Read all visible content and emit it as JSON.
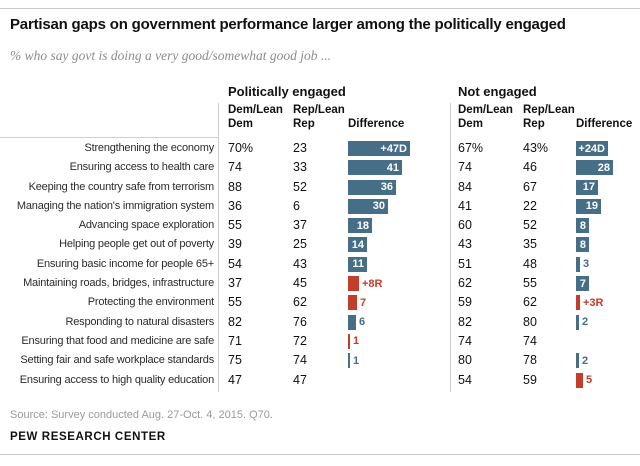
{
  "page": {
    "title": "Partisan gaps on government performance larger among the politically engaged",
    "subtitle": "% who say govt is doing a very good/somewhat good job ...",
    "source": "Source: Survey conducted Aug. 27-Oct. 4, 2015. Q70.",
    "brand": "PEW RESEARCH CENTER"
  },
  "columns": {
    "group1": "Politically engaged",
    "group2": "Not engaged",
    "dem": "Dem/Lean\nDem",
    "rep": "Rep/Lean\nRep",
    "diff": "Difference"
  },
  "colors": {
    "dem_blue": "#466e87",
    "rep_red": "#c33d2b"
  },
  "chart_data": {
    "type": "bar",
    "orientation": "horizontal",
    "groups": [
      "Politically engaged",
      "Not engaged"
    ],
    "value_columns": [
      "Dem/Lean Dem",
      "Rep/Lean Rep",
      "Difference"
    ],
    "rows": [
      {
        "label": "Strengthening the economy",
        "engaged": {
          "dem": "70%",
          "rep": "23",
          "diff": 47,
          "diff_label": "+47D",
          "advantage": "D",
          "label_inside": true
        },
        "not_engaged": {
          "dem": "67%",
          "rep": "43%",
          "diff": 24,
          "diff_label": "+24D",
          "advantage": "D",
          "label_inside": true
        }
      },
      {
        "label": "Ensuring access to health care",
        "engaged": {
          "dem": "74",
          "rep": "33",
          "diff": 41,
          "diff_label": "41",
          "advantage": "D",
          "label_inside": true
        },
        "not_engaged": {
          "dem": "74",
          "rep": "46",
          "diff": 28,
          "diff_label": "28",
          "advantage": "D",
          "label_inside": true
        }
      },
      {
        "label": "Keeping the country safe from terrorism",
        "engaged": {
          "dem": "88",
          "rep": "52",
          "diff": 36,
          "diff_label": "36",
          "advantage": "D",
          "label_inside": true
        },
        "not_engaged": {
          "dem": "84",
          "rep": "67",
          "diff": 17,
          "diff_label": "17",
          "advantage": "D",
          "label_inside": true
        }
      },
      {
        "label": "Managing the nation's immigration system",
        "engaged": {
          "dem": "36",
          "rep": "6",
          "diff": 30,
          "diff_label": "30",
          "advantage": "D",
          "label_inside": true
        },
        "not_engaged": {
          "dem": "41",
          "rep": "22",
          "diff": 19,
          "diff_label": "19",
          "advantage": "D",
          "label_inside": true
        }
      },
      {
        "label": "Advancing space exploration",
        "engaged": {
          "dem": "55",
          "rep": "37",
          "diff": 18,
          "diff_label": "18",
          "advantage": "D",
          "label_inside": true
        },
        "not_engaged": {
          "dem": "60",
          "rep": "52",
          "diff": 8,
          "diff_label": "8",
          "advantage": "D",
          "label_inside": true
        }
      },
      {
        "label": "Helping people get out of poverty",
        "engaged": {
          "dem": "39",
          "rep": "25",
          "diff": 14,
          "diff_label": "14",
          "advantage": "D",
          "label_inside": true
        },
        "not_engaged": {
          "dem": "43",
          "rep": "35",
          "diff": 8,
          "diff_label": "8",
          "advantage": "D",
          "label_inside": true
        }
      },
      {
        "label": "Ensuring basic income for people 65+",
        "engaged": {
          "dem": "54",
          "rep": "43",
          "diff": 11,
          "diff_label": "11",
          "advantage": "D",
          "label_inside": true
        },
        "not_engaged": {
          "dem": "51",
          "rep": "48",
          "diff": 3,
          "diff_label": "3",
          "advantage": "D",
          "label_inside": false
        }
      },
      {
        "label": "Maintaining roads, bridges, infrastructure",
        "engaged": {
          "dem": "37",
          "rep": "45",
          "diff": 8,
          "diff_label": "+8R",
          "advantage": "R",
          "label_inside": false
        },
        "not_engaged": {
          "dem": "62",
          "rep": "55",
          "diff": 7,
          "diff_label": "7",
          "advantage": "D",
          "label_inside": true
        }
      },
      {
        "label": "Protecting the environment",
        "engaged": {
          "dem": "55",
          "rep": "62",
          "diff": 7,
          "diff_label": "7",
          "advantage": "R",
          "label_inside": false
        },
        "not_engaged": {
          "dem": "59",
          "rep": "62",
          "diff": 3,
          "diff_label": "+3R",
          "advantage": "R",
          "label_inside": false
        }
      },
      {
        "label": "Responding to natural disasters",
        "engaged": {
          "dem": "82",
          "rep": "76",
          "diff": 6,
          "diff_label": "6",
          "advantage": "D",
          "label_inside": false
        },
        "not_engaged": {
          "dem": "82",
          "rep": "80",
          "diff": 2,
          "diff_label": "2",
          "advantage": "D",
          "label_inside": false
        }
      },
      {
        "label": "Ensuring that food and medicine are safe",
        "engaged": {
          "dem": "71",
          "rep": "72",
          "diff": 1,
          "diff_label": "1",
          "advantage": "R",
          "label_inside": false
        },
        "not_engaged": {
          "dem": "74",
          "rep": "74",
          "diff": 0,
          "diff_label": "",
          "advantage": "",
          "label_inside": false
        }
      },
      {
        "label": "Setting fair and safe workplace standards",
        "engaged": {
          "dem": "75",
          "rep": "74",
          "diff": 1,
          "diff_label": "1",
          "advantage": "D",
          "label_inside": false
        },
        "not_engaged": {
          "dem": "80",
          "rep": "78",
          "diff": 2,
          "diff_label": "2",
          "advantage": "D",
          "label_inside": false
        }
      },
      {
        "label": "Ensuring access to high quality education",
        "engaged": {
          "dem": "47",
          "rep": "47",
          "diff": 0,
          "diff_label": "",
          "advantage": "",
          "label_inside": false
        },
        "not_engaged": {
          "dem": "54",
          "rep": "59",
          "diff": 5,
          "diff_label": "5",
          "advantage": "R",
          "label_inside": false
        }
      }
    ]
  }
}
